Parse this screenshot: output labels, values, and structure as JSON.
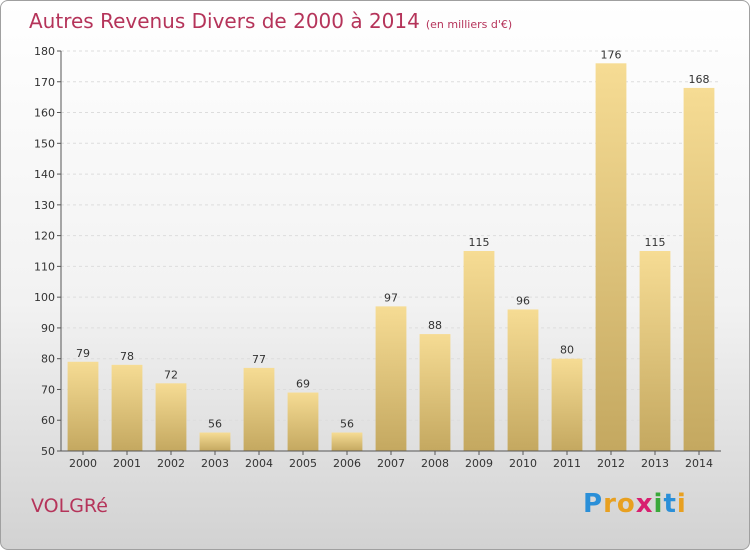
{
  "title": "Autres Revenus Divers de 2000 à 2014",
  "unit": "(en milliers d'€)",
  "place": "VOLGRé",
  "logo": {
    "letters": [
      {
        "ch": "P",
        "color": "#2a8fd8"
      },
      {
        "ch": "r",
        "color": "#e8a020"
      },
      {
        "ch": "o",
        "color": "#e8a020"
      },
      {
        "ch": "x",
        "color": "#d81f6f"
      },
      {
        "ch": "i",
        "color": "#3aa83a"
      },
      {
        "ch": "t",
        "color": "#2a8fd8"
      },
      {
        "ch": "i",
        "color": "#e8a020"
      }
    ]
  },
  "chart_data": {
    "type": "bar",
    "categories": [
      "2000",
      "2001",
      "2002",
      "2003",
      "2004",
      "2005",
      "2006",
      "2007",
      "2008",
      "2009",
      "2010",
      "2011",
      "2012",
      "2013",
      "2014"
    ],
    "values": [
      79,
      78,
      72,
      56,
      77,
      69,
      56,
      97,
      88,
      115,
      96,
      80,
      176,
      115,
      168
    ],
    "ylim": [
      50,
      180
    ],
    "yticks": [
      50,
      60,
      70,
      80,
      90,
      100,
      110,
      120,
      130,
      140,
      150,
      160,
      170,
      180
    ],
    "grid": true,
    "bar_color": "#e8cc82"
  }
}
